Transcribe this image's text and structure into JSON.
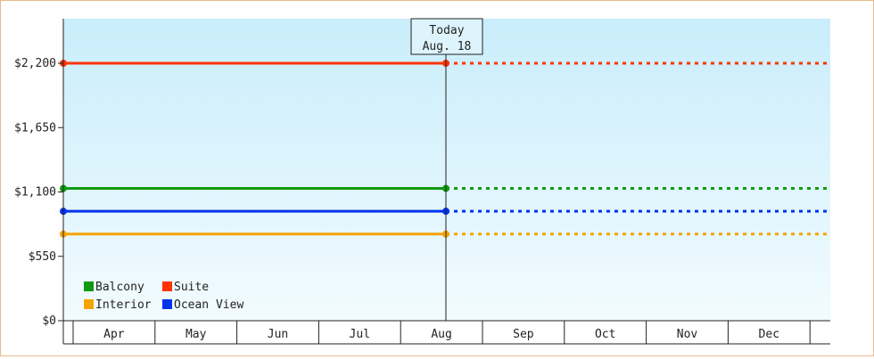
{
  "chart_data": {
    "type": "line",
    "title": "",
    "xlabel": "",
    "ylabel": "",
    "ylim": [
      0,
      2750
    ],
    "y_ticks": [
      0,
      550,
      1100,
      1650,
      2200
    ],
    "y_tick_labels": [
      "$0",
      "$550",
      "$1,100",
      "$1,650",
      "$2,200"
    ],
    "categories": [
      "Apr",
      "May",
      "Jun",
      "Jul",
      "Aug",
      "Sep",
      "Oct",
      "Nov",
      "Dec"
    ],
    "today_marker": {
      "line1": "Today",
      "line2": "Aug. 18",
      "month_index": 4
    },
    "legend_position": "bottom-left",
    "grid": false,
    "series": [
      {
        "name": "Balcony",
        "color": "#119911",
        "value": 1130,
        "style_after_today": "dotted"
      },
      {
        "name": "Suite",
        "color": "#ff3300",
        "value": 2200,
        "style_after_today": "dotted"
      },
      {
        "name": "Interior",
        "color": "#f5a400",
        "value": 740,
        "style_after_today": "dotted"
      },
      {
        "name": "Ocean View",
        "color": "#0033ee",
        "value": 935,
        "style_after_today": "dotted"
      }
    ],
    "legend_order": [
      "Balcony",
      "Suite",
      "Interior",
      "Ocean View"
    ]
  }
}
